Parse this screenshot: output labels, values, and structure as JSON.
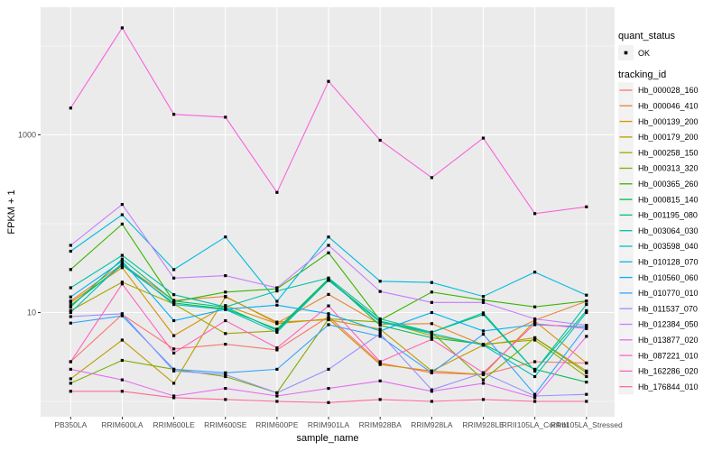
{
  "figure": {
    "y_axis_title": "FPKM + 1",
    "x_axis_title": "sample_name",
    "legend_quant": {
      "title": "quant_status",
      "ok_label": "OK"
    },
    "legend_tracking": {
      "title": "tracking_id"
    }
  },
  "colors": {
    "panel_bg": "#EBEBEB",
    "grid": "#FFFFFF",
    "tick_mark": "#333333",
    "tick_label": "#4D4D4D",
    "legend_key_bg": "#F2F2F2",
    "point": "#000000"
  },
  "chart_data": {
    "type": "line",
    "title": "",
    "xlabel": "sample_name",
    "ylabel": "FPKM + 1",
    "yscale": "log10",
    "legend_position": "right",
    "grid": true,
    "x": [
      "PB350LA",
      "RRIM600LA",
      "RRIM600LE",
      "RRIM600SE",
      "RRIM600PE",
      "RRIM901LA",
      "RRIM928BA",
      "RRIM928LA",
      "RRIM928LE",
      "RRII105LA_Control",
      "RRII105LA_Stressed"
    ],
    "y_ticks": [
      {
        "value": 1000,
        "label": "1000"
      },
      {
        "value": 10,
        "label": "10"
      }
    ],
    "grid_major_values": [
      10,
      1000
    ],
    "grid_minor_values": [
      1,
      100,
      10000
    ],
    "ylim": [
      0.7,
      26000
    ],
    "quant_status_values": [
      "OK"
    ],
    "series": [
      {
        "name": "Hb_000028_160",
        "color": "#F8766D",
        "values": [
          2.8,
          9.5,
          3.9,
          4.4,
          3.8,
          9.0,
          2.7,
          2.1,
          2.0,
          2.8,
          2.7
        ]
      },
      {
        "name": "Hb_000046_410",
        "color": "#EA8331",
        "values": [
          13.5,
          35,
          13.7,
          15.2,
          7.6,
          16,
          7.4,
          7.5,
          4.3,
          8.2,
          13.4
        ]
      },
      {
        "name": "Hb_000139_200",
        "color": "#D89000",
        "values": [
          13.0,
          32,
          5.5,
          12,
          7.5,
          8.5,
          2.6,
          2.2,
          2.0,
          8.0,
          2.7
        ]
      },
      {
        "name": "Hb_000179_200",
        "color": "#C09B00",
        "values": [
          1.8,
          4.9,
          1.6,
          15,
          7.8,
          8.3,
          6.5,
          2.2,
          4.3,
          5.2,
          2.2
        ]
      },
      {
        "name": "Hb_000258_150",
        "color": "#A3A500",
        "values": [
          10.5,
          22,
          12.5,
          5.8,
          6.2,
          23.5,
          8.0,
          5.5,
          4.4,
          4.9,
          1.9
        ]
      },
      {
        "name": "Hb_000313_320",
        "color": "#7CAE00",
        "values": [
          1.6,
          2.9,
          2.3,
          1.9,
          1.25,
          8.5,
          7.8,
          6.0,
          1.75,
          5.2,
          2.1
        ]
      },
      {
        "name": "Hb_000365_260",
        "color": "#39B600",
        "values": [
          30.5,
          99,
          13.2,
          17,
          18.5,
          47,
          8.2,
          17,
          13.8,
          11.6,
          13.5
        ]
      },
      {
        "name": "Hb_000815_140",
        "color": "#00BB4E",
        "values": [
          12,
          34,
          12.8,
          11,
          6.5,
          24,
          7.2,
          5.2,
          4.4,
          2.3,
          1.65
        ]
      },
      {
        "name": "Hb_001195_080",
        "color": "#00BF7D",
        "values": [
          11.5,
          40,
          13.5,
          11.5,
          6.3,
          23,
          8.0,
          6.0,
          9.5,
          2.2,
          10.5
        ]
      },
      {
        "name": "Hb_003064_030",
        "color": "#00C1A3",
        "values": [
          19,
          44,
          15.9,
          11.6,
          17.5,
          24.5,
          8.5,
          6.0,
          9.9,
          2.2,
          12.3
        ]
      },
      {
        "name": "Hb_003598_040",
        "color": "#00BFC4",
        "values": [
          10,
          36,
          12.3,
          10.8,
          6.0,
          23,
          7.8,
          5.8,
          4.3,
          1.9,
          10
        ]
      },
      {
        "name": "Hb_010128_070",
        "color": "#00BAE0",
        "values": [
          49,
          126,
          30.4,
          71,
          13.4,
          71,
          22.5,
          21.8,
          15.2,
          28.5,
          15.7
        ]
      },
      {
        "name": "Hb_010560_060",
        "color": "#00B0F6",
        "values": [
          15,
          38,
          8.1,
          10.9,
          12.1,
          9.7,
          6.2,
          10,
          6.2,
          7.3,
          6.9
        ]
      },
      {
        "name": "Hb_010770_010",
        "color": "#35A2FF",
        "values": [
          7.6,
          9.2,
          2.3,
          2.1,
          2.3,
          7.3,
          5.4,
          2.1,
          5.7,
          1.2,
          7.0
        ]
      },
      {
        "name": "Hb_011537_070",
        "color": "#9590FF",
        "values": [
          9.0,
          9.7,
          2.2,
          2.0,
          1.25,
          2.3,
          5.8,
          1.35,
          2.1,
          1.15,
          1.2
        ]
      },
      {
        "name": "Hb_012384_050",
        "color": "#C77CFF",
        "values": [
          57,
          165,
          24.4,
          26,
          19,
          57,
          17.3,
          13,
          13,
          8.5,
          7.2
        ]
      },
      {
        "name": "Hb_013877_020",
        "color": "#E76BF3",
        "values": [
          2.3,
          1.75,
          1.15,
          1.4,
          1.15,
          1.4,
          1.7,
          1.3,
          1.6,
          1.1,
          5.4
        ]
      },
      {
        "name": "Hb_087221_010",
        "color": "#FA62DB",
        "values": [
          2000,
          16000,
          1700,
          1580,
          225,
          4000,
          870,
          330,
          920,
          130,
          155
        ]
      },
      {
        "name": "Hb_162286_020",
        "color": "#FF62BC",
        "values": [
          2.8,
          21,
          3.5,
          8.1,
          4.0,
          11.9,
          2.8,
          5.0,
          2.1,
          7.5,
          6.6
        ]
      },
      {
        "name": "Hb_176844_010",
        "color": "#FF6A98",
        "values": [
          1.3,
          1.3,
          1.1,
          1.05,
          1.0,
          0.97,
          1.05,
          1.0,
          1.05,
          1.0,
          1.0
        ]
      }
    ]
  }
}
